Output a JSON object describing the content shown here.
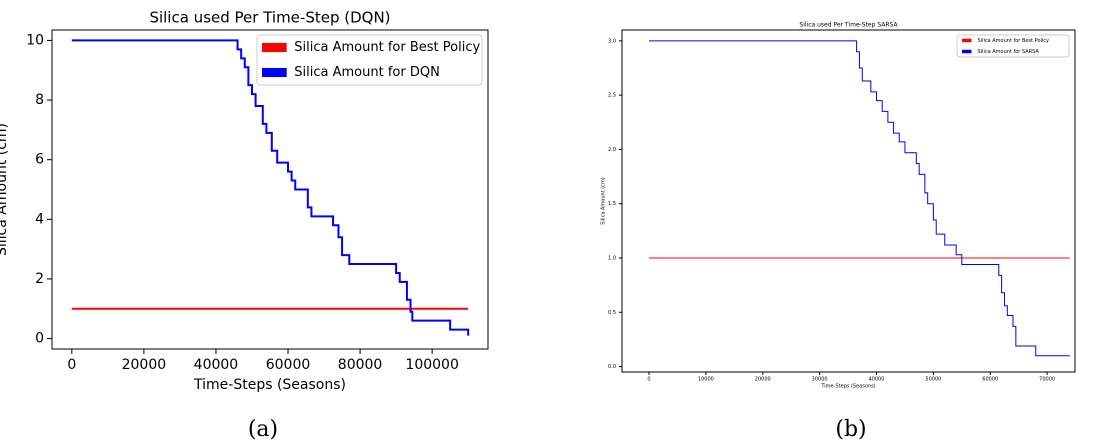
{
  "chart_data": [
    {
      "type": "line",
      "title": "Silica used Per Time-Step (DQN)",
      "x_label": "Time-Steps (Seasons)",
      "y_label": "Silica Amount (cm)",
      "caption": "(a)",
      "xlim": [
        -5500,
        115500
      ],
      "ylim": [
        -0.35,
        10.35
      ],
      "xticks": [
        0,
        20000,
        40000,
        60000,
        80000,
        100000
      ],
      "yticks": [
        0,
        2,
        4,
        6,
        8,
        10
      ],
      "legend": "upper right",
      "series": [
        {
          "name": "Silica Amount for Best Policy",
          "color": "#ff0000",
          "x": [
            0,
            110000
          ],
          "values": [
            1,
            1
          ]
        },
        {
          "name": "Silica Amount for DQN",
          "color": "#0000ff",
          "x": [
            0,
            46000,
            46000,
            47000,
            47000,
            48000,
            48000,
            49000,
            49000,
            50000,
            50000,
            51000,
            51000,
            53000,
            53000,
            54000,
            54000,
            55500,
            55500,
            57000,
            57000,
            60000,
            60000,
            61000,
            61000,
            62000,
            62000,
            65500,
            65500,
            66500,
            66500,
            72500,
            72500,
            74000,
            74000,
            75000,
            75000,
            77000,
            77000,
            90000,
            90000,
            91000,
            91000,
            93000,
            93000,
            94000,
            94000,
            94500,
            94500,
            105000,
            105000,
            110000,
            110000
          ],
          "values": [
            10,
            10,
            9.7,
            9.7,
            9.4,
            9.4,
            9.1,
            9.1,
            8.5,
            8.5,
            8.2,
            8.2,
            7.8,
            7.8,
            7.2,
            7.2,
            6.9,
            6.9,
            6.3,
            6.3,
            5.9,
            5.9,
            5.6,
            5.6,
            5.3,
            5.3,
            5.0,
            5.0,
            4.4,
            4.4,
            4.1,
            4.1,
            3.8,
            3.8,
            3.4,
            3.4,
            2.8,
            2.8,
            2.5,
            2.5,
            2.2,
            2.2,
            1.9,
            1.9,
            1.3,
            1.3,
            0.9,
            0.9,
            0.6,
            0.6,
            0.3,
            0.3,
            0.1
          ]
        }
      ]
    },
    {
      "type": "line",
      "title": "Silica used Per Time-Step SARSA",
      "x_label": "Time-Steps (Seasons)",
      "y_label": "Silica Amount (cm)",
      "caption": "(b)",
      "xlim": [
        -4750,
        74900
      ],
      "ylim": [
        -0.05,
        3.1
      ],
      "xticks": [
        0,
        10000,
        20000,
        30000,
        40000,
        50000,
        60000,
        70000
      ],
      "yticks": [
        {
          "value": 0,
          "label": "0.0"
        },
        {
          "value": 0.5,
          "label": "0.5"
        },
        {
          "value": 1,
          "label": "1.0"
        },
        {
          "value": 1.5,
          "label": "1.5"
        },
        {
          "value": 2,
          "label": "2.0"
        },
        {
          "value": 2.5,
          "label": "2.5"
        },
        {
          "value": 3,
          "label": "3.0"
        }
      ],
      "legend": "upper right",
      "series": [
        {
          "name": "Silica Amount for Best Policy",
          "color": "#ff0000",
          "x": [
            0,
            74000
          ],
          "values": [
            1,
            1
          ]
        },
        {
          "name": "Silica Amount for SARSA",
          "color": "#0000ff",
          "x": [
            0,
            36500,
            36500,
            37000,
            37000,
            37500,
            37500,
            39000,
            39000,
            40000,
            40000,
            41000,
            41000,
            42000,
            42000,
            43000,
            43000,
            44000,
            44000,
            45000,
            45000,
            47000,
            47000,
            47500,
            47500,
            48500,
            48500,
            49000,
            49000,
            50000,
            50000,
            50500,
            50500,
            52000,
            52000,
            54000,
            54000,
            55000,
            55000,
            61500,
            61500,
            62000,
            62000,
            62500,
            62500,
            63000,
            63000,
            64000,
            64000,
            64500,
            64500,
            68000,
            68000,
            74000
          ],
          "values": [
            3,
            3,
            2.9,
            2.9,
            2.75,
            2.75,
            2.63,
            2.63,
            2.53,
            2.53,
            2.45,
            2.45,
            2.35,
            2.35,
            2.25,
            2.25,
            2.15,
            2.15,
            2.07,
            2.07,
            1.97,
            1.97,
            1.87,
            1.87,
            1.77,
            1.77,
            1.6,
            1.6,
            1.5,
            1.5,
            1.35,
            1.35,
            1.22,
            1.22,
            1.12,
            1.12,
            1.03,
            1.03,
            0.94,
            0.94,
            0.84,
            0.84,
            0.68,
            0.68,
            0.56,
            0.56,
            0.47,
            0.47,
            0.37,
            0.37,
            0.19,
            0.19,
            0.1,
            0.1
          ]
        }
      ]
    }
  ]
}
